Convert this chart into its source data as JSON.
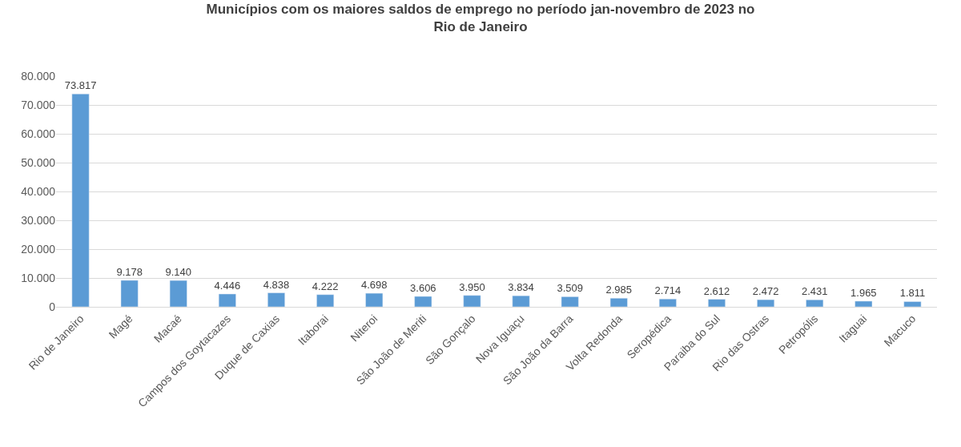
{
  "chart_data": {
    "type": "bar",
    "title": "Municípios com os maiores saldos de emprego no período jan-novembro de 2023 no Rio de Janeiro",
    "categories": [
      "Rio de Janeiro",
      "Magé",
      "Macaé",
      "Campos dos Goytacazes",
      "Duque de Caxias",
      "Itaborai",
      "Niteroi",
      "São João de Meriti",
      "São Gonçalo",
      "Nova Iguaçu",
      "São João da Barra",
      "Volta Redonda",
      "Seropédica",
      "Paraiba do Sul",
      "Rio das Ostras",
      "Petropólis",
      "Itaguai",
      "Macuco"
    ],
    "values": [
      73817,
      9178,
      9140,
      4446,
      4838,
      4222,
      4698,
      3606,
      3950,
      3834,
      3509,
      2985,
      2714,
      2612,
      2472,
      2431,
      1965,
      1811
    ],
    "value_labels": [
      "73.817",
      "9.178",
      "9.140",
      "4.446",
      "4.838",
      "4.222",
      "4.698",
      "3.606",
      "3.950",
      "3.834",
      "3.509",
      "2.985",
      "2.714",
      "2.612",
      "2.472",
      "2.431",
      "1.965",
      "1.811"
    ],
    "color": "#5b9bd5",
    "ylim": [
      0,
      80000
    ],
    "yticks": [
      {
        "value": 0,
        "label": "0"
      },
      {
        "value": 10000,
        "label": "10.000"
      },
      {
        "value": 20000,
        "label": "20.000"
      },
      {
        "value": 30000,
        "label": "30.000"
      },
      {
        "value": 40000,
        "label": "40.000"
      },
      {
        "value": 50000,
        "label": "50.000"
      },
      {
        "value": 60000,
        "label": "60.000"
      },
      {
        "value": 70000,
        "label": "70.000"
      },
      {
        "value": 80000,
        "label": "80.000"
      }
    ],
    "grid": "y"
  }
}
